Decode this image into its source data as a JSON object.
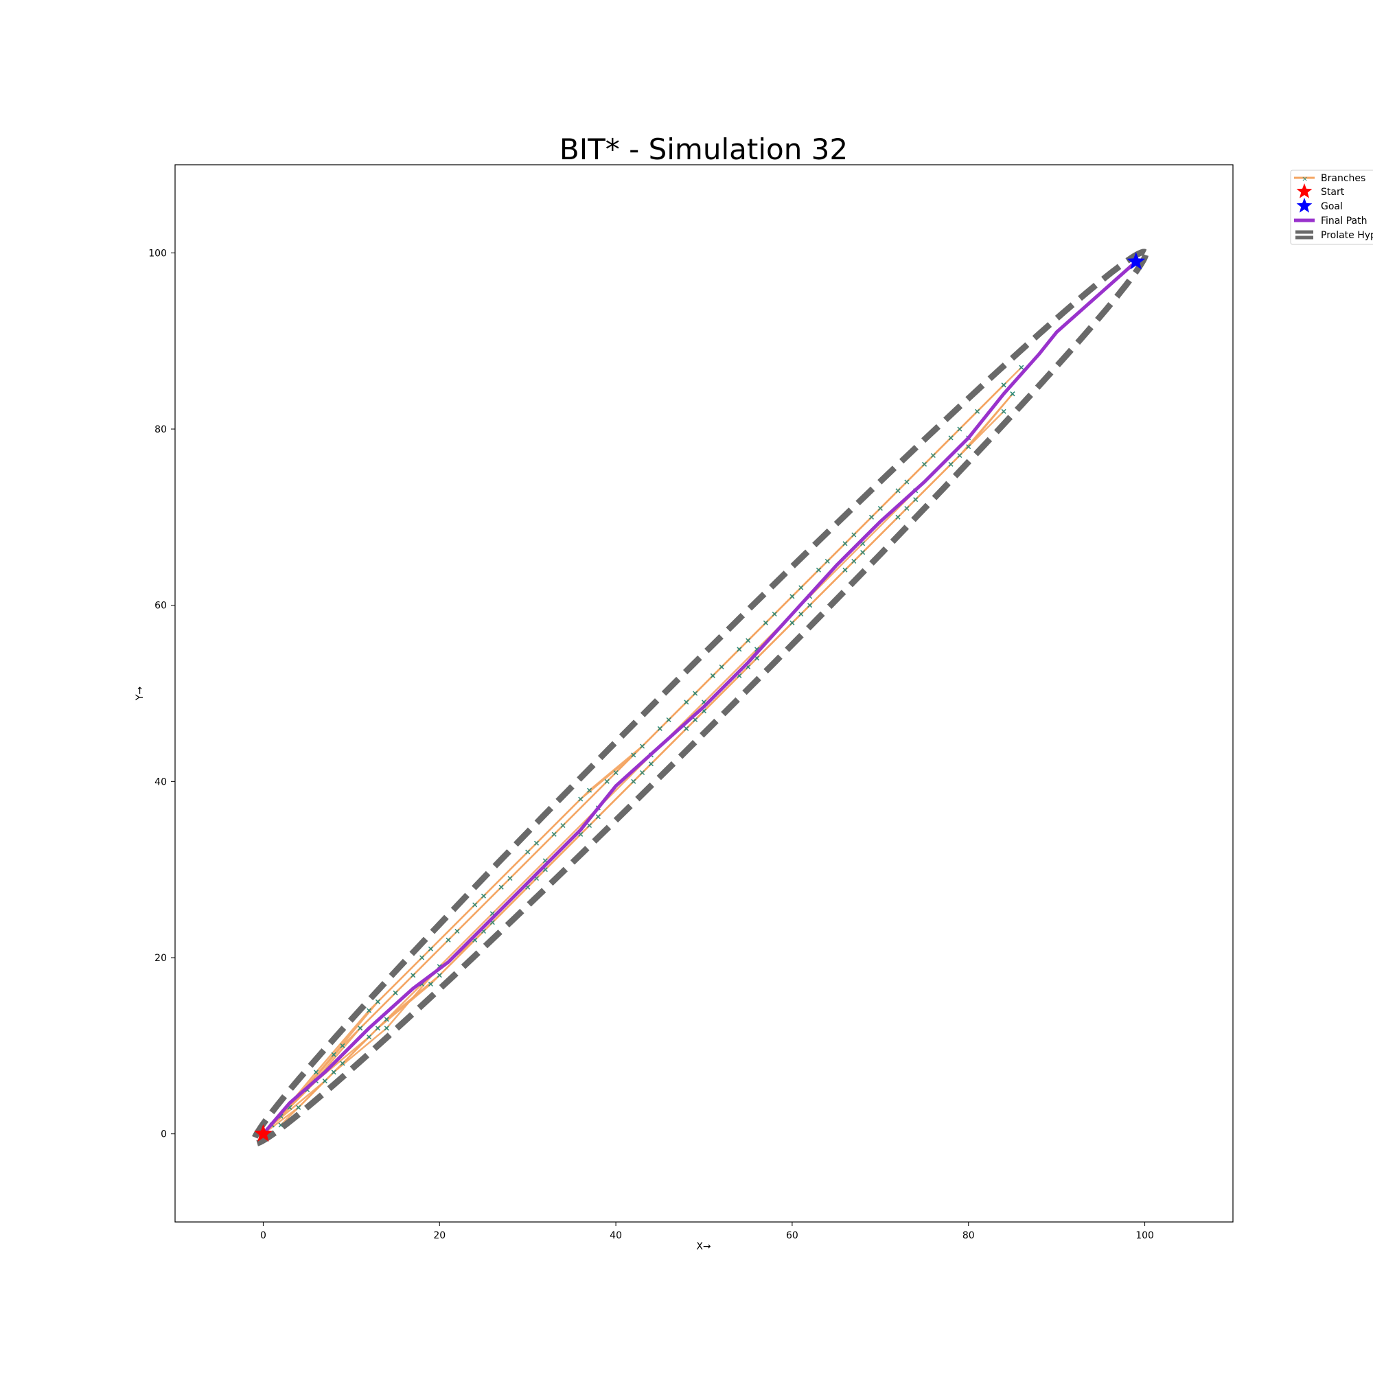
{
  "chart_data": {
    "type": "line",
    "title": "BIT* - Simulation 32",
    "xlabel": "X→",
    "ylabel": "Y→",
    "xlim": [
      -10,
      110
    ],
    "ylim": [
      -10,
      110
    ],
    "xticks": [
      0,
      20,
      40,
      60,
      80,
      100
    ],
    "yticks": [
      0,
      20,
      40,
      60,
      80,
      100
    ],
    "grid": false,
    "legend_position": "outside-top-right",
    "legend": [
      "Branches",
      "Start",
      "Goal",
      "Final Path",
      "Prolate Hyp"
    ],
    "colors": {
      "branches": "#f4a460",
      "nodes": "#2e8b7a",
      "start": "#ff0000",
      "goal": "#0000ff",
      "final_path": "#9932cc",
      "ellipse": "#696969"
    },
    "start": [
      0,
      0
    ],
    "goal": [
      99,
      99
    ],
    "final_path": [
      [
        0,
        0
      ],
      [
        3,
        3.5
      ],
      [
        7,
        7
      ],
      [
        12,
        12
      ],
      [
        17,
        16.5
      ],
      [
        21,
        19.5
      ],
      [
        26,
        24.5
      ],
      [
        31,
        29.5
      ],
      [
        36,
        34.5
      ],
      [
        40,
        39.5
      ],
      [
        45,
        44
      ],
      [
        50,
        48.5
      ],
      [
        55,
        53.5
      ],
      [
        60,
        59
      ],
      [
        65,
        64.5
      ],
      [
        70,
        69.5
      ],
      [
        75,
        74
      ],
      [
        80,
        79
      ],
      [
        84,
        84
      ],
      [
        88,
        88.5
      ],
      [
        90,
        91
      ],
      [
        99,
        99
      ]
    ],
    "branches": [
      [
        [
          0,
          0
        ],
        [
          5,
          5
        ],
        [
          11,
          12
        ],
        [
          17,
          18
        ],
        [
          22,
          23
        ],
        [
          28,
          29
        ],
        [
          34,
          35
        ],
        [
          40,
          41
        ],
        [
          46,
          47
        ],
        [
          52,
          53
        ],
        [
          58,
          59
        ],
        [
          64,
          65
        ],
        [
          70,
          71
        ],
        [
          76,
          77
        ],
        [
          84,
          85
        ]
      ],
      [
        [
          1,
          1
        ],
        [
          6,
          7
        ],
        [
          12,
          14
        ],
        [
          18,
          20
        ],
        [
          24,
          26
        ],
        [
          30,
          32
        ],
        [
          36,
          38
        ],
        [
          42,
          43
        ],
        [
          48,
          49
        ],
        [
          54,
          55
        ],
        [
          60,
          61
        ],
        [
          66,
          67
        ],
        [
          72,
          73
        ],
        [
          78,
          79
        ],
        [
          86,
          87
        ]
      ],
      [
        [
          0,
          0
        ],
        [
          4,
          3
        ],
        [
          9,
          8
        ],
        [
          14,
          13
        ],
        [
          20,
          18
        ],
        [
          26,
          24
        ],
        [
          32,
          30
        ],
        [
          38,
          36
        ],
        [
          44,
          42
        ],
        [
          50,
          48
        ],
        [
          56,
          54
        ],
        [
          62,
          60
        ],
        [
          68,
          66
        ],
        [
          74,
          72
        ],
        [
          80,
          78
        ],
        [
          85,
          84
        ]
      ],
      [
        [
          2,
          2
        ],
        [
          8,
          9
        ],
        [
          13,
          15
        ],
        [
          19,
          21
        ],
        [
          25,
          27
        ],
        [
          31,
          33
        ],
        [
          37,
          39
        ],
        [
          43,
          44
        ],
        [
          49,
          50
        ],
        [
          55,
          56
        ],
        [
          61,
          62
        ],
        [
          67,
          68
        ],
        [
          73,
          74
        ],
        [
          79,
          80
        ],
        [
          84,
          85
        ]
      ],
      [
        [
          1,
          1
        ],
        [
          7,
          6
        ],
        [
          13,
          12
        ],
        [
          19,
          17
        ],
        [
          25,
          23
        ],
        [
          31,
          29
        ],
        [
          37,
          35
        ],
        [
          43,
          41
        ],
        [
          49,
          47
        ],
        [
          55,
          53
        ],
        [
          61,
          59
        ],
        [
          67,
          65
        ],
        [
          73,
          71
        ],
        [
          79,
          77
        ],
        [
          85,
          84
        ]
      ],
      [
        [
          0,
          0
        ],
        [
          6,
          6
        ],
        [
          12,
          11
        ],
        [
          18,
          17
        ],
        [
          24,
          22
        ],
        [
          30,
          28
        ],
        [
          36,
          34
        ],
        [
          42,
          40
        ],
        [
          48,
          46
        ],
        [
          54,
          52
        ],
        [
          60,
          58
        ],
        [
          66,
          64
        ],
        [
          72,
          70
        ],
        [
          78,
          76
        ],
        [
          84,
          82
        ]
      ],
      [
        [
          3,
          3
        ],
        [
          9,
          10
        ],
        [
          15,
          16
        ],
        [
          21,
          22
        ],
        [
          27,
          28
        ],
        [
          33,
          34
        ],
        [
          39,
          40
        ],
        [
          45,
          46
        ],
        [
          51,
          52
        ],
        [
          57,
          58
        ],
        [
          63,
          64
        ],
        [
          69,
          70
        ],
        [
          75,
          76
        ],
        [
          81,
          82
        ]
      ],
      [
        [
          2,
          1
        ],
        [
          8,
          7
        ],
        [
          14,
          12
        ],
        [
          20,
          19
        ],
        [
          26,
          25
        ],
        [
          32,
          31
        ],
        [
          38,
          37
        ],
        [
          44,
          43
        ],
        [
          50,
          49
        ],
        [
          56,
          55
        ],
        [
          62,
          61
        ],
        [
          68,
          67
        ],
        [
          74,
          73
        ],
        [
          80,
          79
        ]
      ]
    ],
    "ellipse": {
      "foci": [
        [
          0,
          0
        ],
        [
          99,
          99
        ]
      ],
      "semi_major": 71.5,
      "semi_minor": 3.2
    }
  }
}
